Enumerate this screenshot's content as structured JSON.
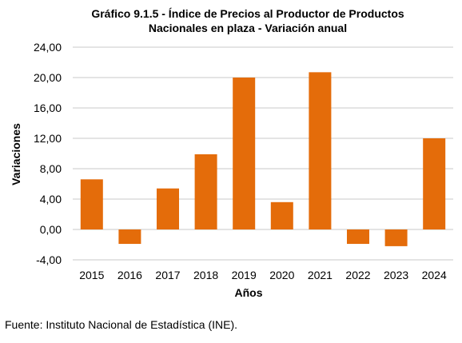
{
  "chart_data": {
    "type": "bar",
    "title_lines": [
      "Gráfico 9.1.5 - Índice de Precios al Productor de Productos",
      "Nacionales en plaza - Variación  anual"
    ],
    "xlabel": "Años",
    "ylabel": "Variaciones",
    "categories": [
      "2015",
      "2016",
      "2017",
      "2018",
      "2019",
      "2020",
      "2021",
      "2022",
      "2023",
      "2024"
    ],
    "values": [
      6.6,
      -1.9,
      5.4,
      9.9,
      20.0,
      3.6,
      20.7,
      -1.9,
      -2.2,
      12.0
    ],
    "ylim": [
      -4,
      24
    ],
    "yticks": [
      "-4,00",
      "0,00",
      "4,00",
      "8,00",
      "12,00",
      "16,00",
      "20,00",
      "24,00"
    ],
    "ytick_values": [
      -4,
      0,
      4,
      8,
      12,
      16,
      20,
      24
    ],
    "grid": true,
    "bar_color": "#E46C0A",
    "grid_color": "#c8c8c8"
  },
  "source_text": "Fuente: Instituto Nacional de Estadística (INE)."
}
